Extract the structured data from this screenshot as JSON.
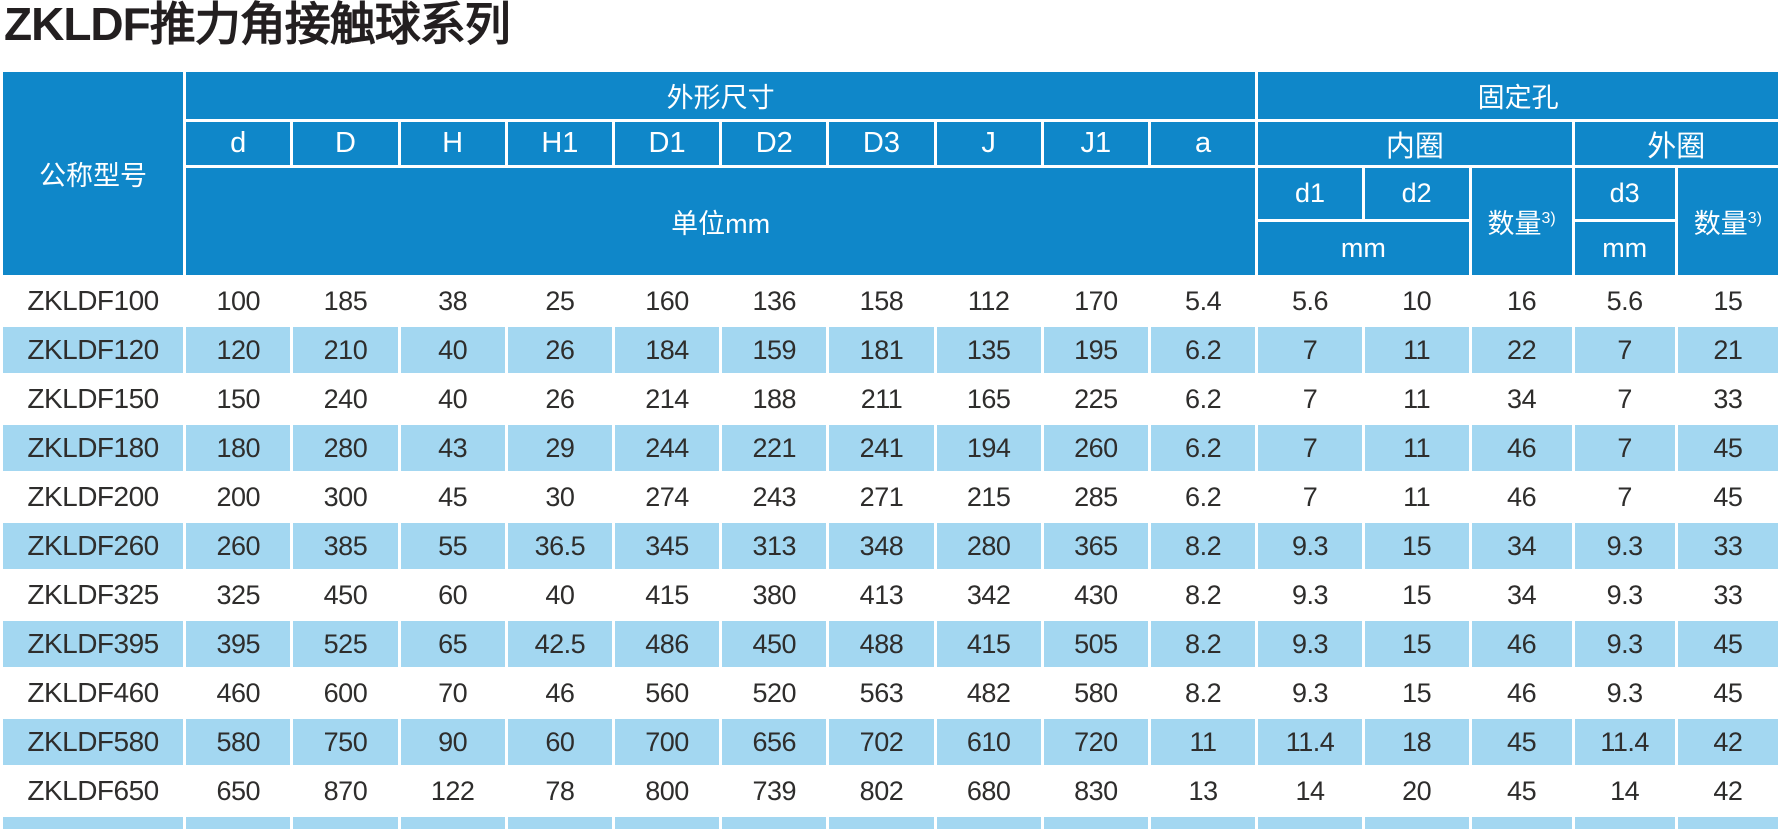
{
  "title": "ZKLDF推力角接触球系列",
  "colors": {
    "header_blue": "#0f87c9",
    "stripe_blue": "#a3d7f1",
    "text_dark": "#2e2d2c",
    "header_text": "#ffffff"
  },
  "table": {
    "header": {
      "model_col": "公称型号",
      "dims_group": "外形尺寸",
      "holes_group": "固定孔",
      "dim_cols": [
        "d",
        "D",
        "H",
        "H1",
        "D1",
        "D2",
        "D3",
        "J",
        "J1",
        "a"
      ],
      "dims_unit": "单位mm",
      "inner_ring": "内圈",
      "outer_ring": "外圈",
      "inner_cols": [
        "d1",
        "d2"
      ],
      "outer_col": "d3",
      "qty_label": "数量",
      "qty_sup": "3)",
      "mm_label": "mm"
    },
    "rows": [
      {
        "model": "ZKLDF100",
        "values": [
          "100",
          "185",
          "38",
          "25",
          "160",
          "136",
          "158",
          "112",
          "170",
          "5.4",
          "5.6",
          "10",
          "16",
          "5.6",
          "15"
        ]
      },
      {
        "model": "ZKLDF120",
        "values": [
          "120",
          "210",
          "40",
          "26",
          "184",
          "159",
          "181",
          "135",
          "195",
          "6.2",
          "7",
          "11",
          "22",
          "7",
          "21"
        ]
      },
      {
        "model": "ZKLDF150",
        "values": [
          "150",
          "240",
          "40",
          "26",
          "214",
          "188",
          "211",
          "165",
          "225",
          "6.2",
          "7",
          "11",
          "34",
          "7",
          "33"
        ]
      },
      {
        "model": "ZKLDF180",
        "values": [
          "180",
          "280",
          "43",
          "29",
          "244",
          "221",
          "241",
          "194",
          "260",
          "6.2",
          "7",
          "11",
          "46",
          "7",
          "45"
        ]
      },
      {
        "model": "ZKLDF200",
        "values": [
          "200",
          "300",
          "45",
          "30",
          "274",
          "243",
          "271",
          "215",
          "285",
          "6.2",
          "7",
          "11",
          "46",
          "7",
          "45"
        ]
      },
      {
        "model": "ZKLDF260",
        "values": [
          "260",
          "385",
          "55",
          "36.5",
          "345",
          "313",
          "348",
          "280",
          "365",
          "8.2",
          "9.3",
          "15",
          "34",
          "9.3",
          "33"
        ]
      },
      {
        "model": "ZKLDF325",
        "values": [
          "325",
          "450",
          "60",
          "40",
          "415",
          "380",
          "413",
          "342",
          "430",
          "8.2",
          "9.3",
          "15",
          "34",
          "9.3",
          "33"
        ]
      },
      {
        "model": "ZKLDF395",
        "values": [
          "395",
          "525",
          "65",
          "42.5",
          "486",
          "450",
          "488",
          "415",
          "505",
          "8.2",
          "9.3",
          "15",
          "46",
          "9.3",
          "45"
        ]
      },
      {
        "model": "ZKLDF460",
        "values": [
          "460",
          "600",
          "70",
          "46",
          "560",
          "520",
          "563",
          "482",
          "580",
          "8.2",
          "9.3",
          "15",
          "46",
          "9.3",
          "45"
        ]
      },
      {
        "model": "ZKLDF580",
        "values": [
          "580",
          "750",
          "90",
          "60",
          "700",
          "656",
          "702",
          "610",
          "720",
          "11",
          "11.4",
          "18",
          "45",
          "11.4",
          "42"
        ]
      },
      {
        "model": "ZKLDF650",
        "values": [
          "650",
          "870",
          "122",
          "78",
          "800",
          "739",
          "802",
          "680",
          "830",
          "13",
          "14",
          "20",
          "45",
          "14",
          "42"
        ]
      }
    ],
    "partial_next_row": true
  }
}
